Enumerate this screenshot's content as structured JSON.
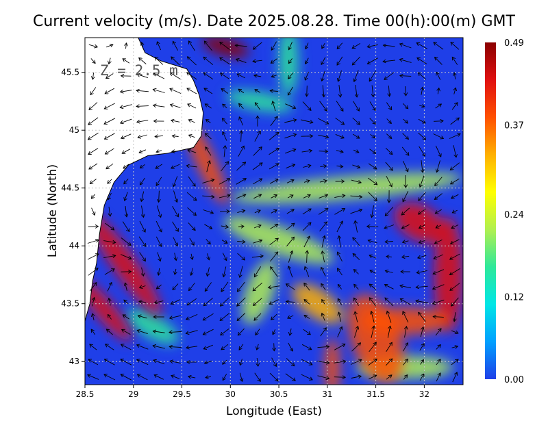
{
  "chart_data": {
    "type": "heatmap",
    "title": "Current velocity (m/s). Date 2025.08.28. Time 00(h):00(m) GMT",
    "xlabel": "Longitude (East)",
    "ylabel": "Latitude (North)",
    "annotation": "Z = 2.5 m",
    "xlim": [
      28.5,
      32.4
    ],
    "ylim": [
      42.8,
      45.8
    ],
    "xticks": [
      28.5,
      29,
      29.5,
      30,
      30.5,
      31,
      31.5,
      32
    ],
    "xtick_labels": [
      "28.5",
      "29",
      "29.5",
      "30",
      "30.5",
      "31",
      "31.5",
      "32"
    ],
    "yticks": [
      43,
      43.5,
      44,
      44.5,
      45,
      45.5
    ],
    "ytick_labels": [
      "43",
      "43.5",
      "44",
      "44.5",
      "45",
      "45.5"
    ],
    "grid": true,
    "colorbar": {
      "min": 0.0,
      "max": 0.49,
      "ticks": [
        0.0,
        0.12,
        0.24,
        0.37,
        0.49
      ],
      "tick_labels": [
        "0.00",
        "0.12",
        "0.24",
        "0.37",
        "0.49"
      ],
      "colors": [
        "#1f3fe8",
        "#00a0ff",
        "#00e6e6",
        "#2ee89a",
        "#b0f050",
        "#ffff00",
        "#ffb000",
        "#ff5000",
        "#e01010",
        "#8a0000"
      ]
    },
    "land_color": "#ffffff",
    "coastline": [
      [
        29.05,
        45.8
      ],
      [
        29.12,
        45.67
      ],
      [
        29.28,
        45.6
      ],
      [
        29.55,
        45.53
      ],
      [
        29.62,
        45.43
      ],
      [
        29.68,
        45.3
      ],
      [
        29.72,
        45.15
      ],
      [
        29.7,
        44.95
      ],
      [
        29.62,
        44.85
      ],
      [
        29.35,
        44.8
      ],
      [
        29.15,
        44.78
      ],
      [
        28.95,
        44.7
      ],
      [
        28.8,
        44.55
      ],
      [
        28.7,
        44.35
      ],
      [
        28.65,
        44.1
      ],
      [
        28.62,
        43.85
      ],
      [
        28.58,
        43.7
      ],
      [
        28.55,
        43.5
      ],
      [
        28.5,
        43.35
      ]
    ],
    "high_speed_regions": [
      {
        "center": [
          28.9,
          43.85
        ],
        "major_deg": 0.12,
        "minor_deg": 0.55,
        "angle": 35,
        "value": 0.45
      },
      {
        "center": [
          28.7,
          43.45
        ],
        "major_deg": 0.1,
        "minor_deg": 0.35,
        "angle": 40,
        "value": 0.42
      },
      {
        "center": [
          29.75,
          44.72
        ],
        "major_deg": 0.1,
        "minor_deg": 0.4,
        "angle": 25,
        "value": 0.36
      },
      {
        "center": [
          29.95,
          45.72
        ],
        "major_deg": 0.25,
        "minor_deg": 0.08,
        "angle": -15,
        "value": 0.47
      },
      {
        "center": [
          31.95,
          44.2
        ],
        "major_deg": 0.28,
        "minor_deg": 0.15,
        "angle": -30,
        "value": 0.44
      },
      {
        "center": [
          32.25,
          43.75
        ],
        "major_deg": 0.15,
        "minor_deg": 0.5,
        "angle": 0,
        "value": 0.46
      },
      {
        "center": [
          31.8,
          43.35
        ],
        "major_deg": 0.45,
        "minor_deg": 0.12,
        "angle": 0,
        "value": 0.4
      },
      {
        "center": [
          30.9,
          43.5
        ],
        "major_deg": 0.3,
        "minor_deg": 0.12,
        "angle": -35,
        "value": 0.34
      },
      {
        "center": [
          31.5,
          43.2
        ],
        "major_deg": 0.25,
        "minor_deg": 0.4,
        "angle": 20,
        "value": 0.36
      },
      {
        "center": [
          31.05,
          42.95
        ],
        "major_deg": 0.08,
        "minor_deg": 0.25,
        "angle": 0,
        "value": 0.4
      }
    ],
    "mid_speed_bands": [
      {
        "center": [
          31.2,
          44.5
        ],
        "major_deg": 1.2,
        "minor_deg": 0.1,
        "angle": 5,
        "value": 0.2
      },
      {
        "center": [
          30.5,
          44.05
        ],
        "major_deg": 0.6,
        "minor_deg": 0.12,
        "angle": -20,
        "value": 0.22
      },
      {
        "center": [
          30.3,
          43.6
        ],
        "major_deg": 0.35,
        "minor_deg": 0.12,
        "angle": 70,
        "value": 0.2
      },
      {
        "center": [
          30.3,
          45.25
        ],
        "major_deg": 0.35,
        "minor_deg": 0.08,
        "angle": -10,
        "value": 0.18
      },
      {
        "center": [
          30.6,
          45.6
        ],
        "major_deg": 0.1,
        "minor_deg": 0.3,
        "angle": 0,
        "value": 0.16
      },
      {
        "center": [
          29.2,
          43.3
        ],
        "major_deg": 0.3,
        "minor_deg": 0.1,
        "angle": -30,
        "value": 0.16
      },
      {
        "center": [
          31.8,
          42.95
        ],
        "major_deg": 0.5,
        "minor_deg": 0.1,
        "angle": 0,
        "value": 0.24
      }
    ]
  }
}
